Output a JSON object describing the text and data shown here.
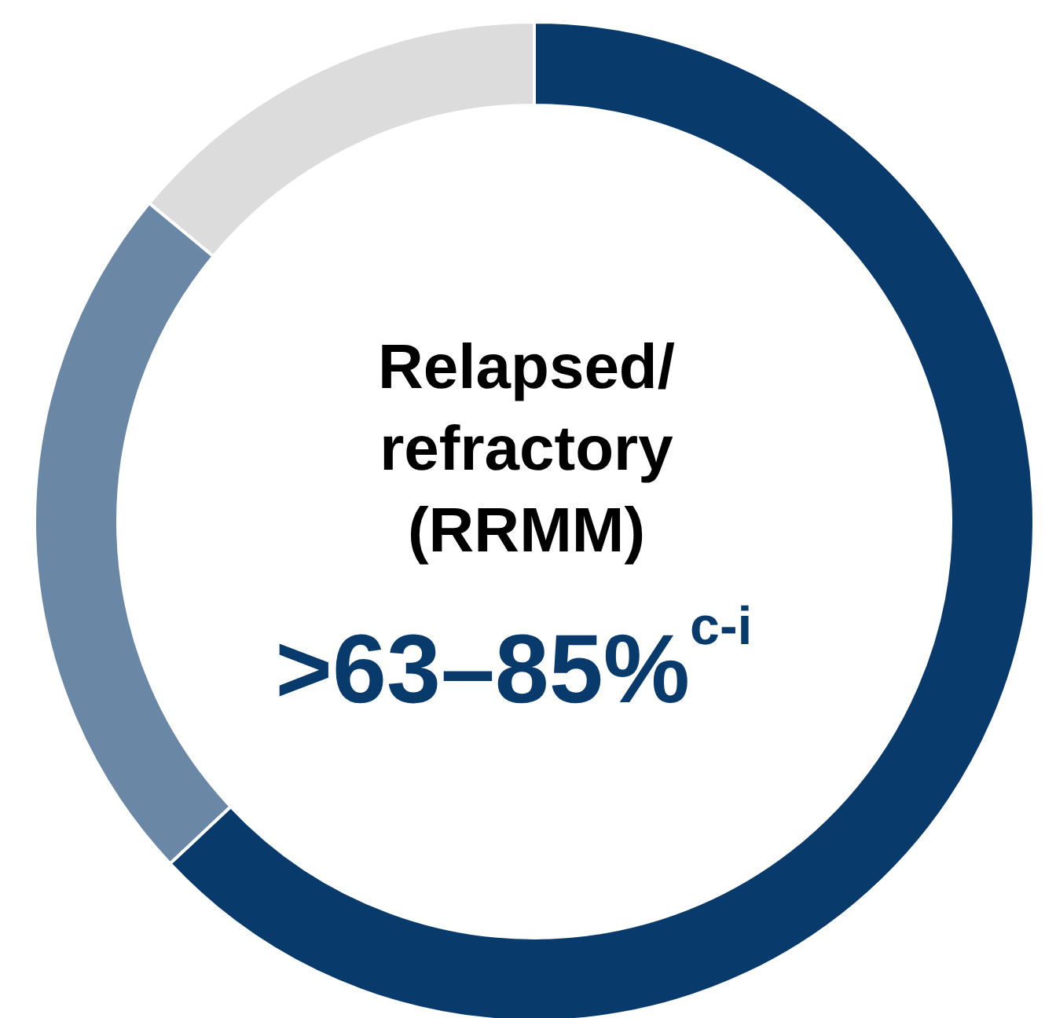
{
  "chart_data": {
    "type": "donut",
    "categories": [
      null,
      null,
      null
    ],
    "values": [
      63,
      23,
      14
    ],
    "colors": [
      "#083a6b",
      "#6a87a6",
      "#dcdcdc"
    ],
    "annotations": [
      "Relapsed/ refractory (RRMM)",
      ">63–85%$^{c-i}$"
    ],
    "legend": false
  }
}
